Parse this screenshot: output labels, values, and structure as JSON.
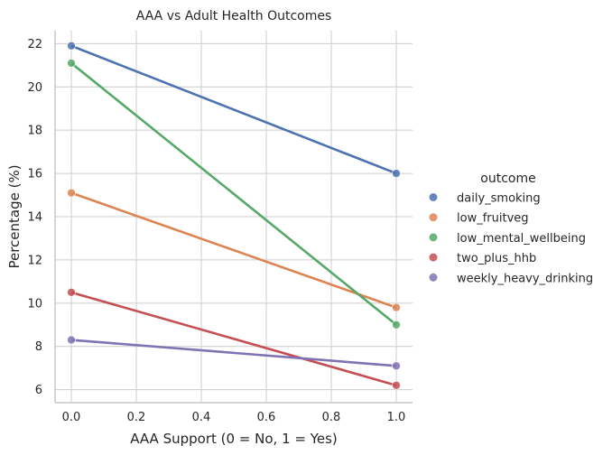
{
  "chart_data": {
    "type": "line",
    "title": "AAA vs Adult Health Outcomes",
    "xlabel": "AAA Support (0 = No, 1 = Yes)",
    "ylabel": "Percentage (%)",
    "xlim": [
      -0.05,
      1.05
    ],
    "ylim": [
      5.4,
      22.6
    ],
    "xticks": [
      0.0,
      0.2,
      0.4,
      0.6,
      0.8,
      1.0
    ],
    "xtick_labels": [
      "0.0",
      "0.2",
      "0.4",
      "0.6",
      "0.8",
      "1.0"
    ],
    "yticks": [
      6,
      8,
      10,
      12,
      14,
      16,
      18,
      20,
      22
    ],
    "ytick_labels": [
      "6",
      "8",
      "10",
      "12",
      "14",
      "16",
      "18",
      "20",
      "22"
    ],
    "grid": true,
    "legend_title": "outcome",
    "legend_position": "right",
    "x": [
      0,
      1
    ],
    "series": [
      {
        "name": "daily_smoking",
        "color": "#4c72b0",
        "values": [
          21.9,
          16.0
        ]
      },
      {
        "name": "low_fruitveg",
        "color": "#dd8452",
        "values": [
          15.1,
          9.8
        ]
      },
      {
        "name": "low_mental_wellbeing",
        "color": "#55a868",
        "values": [
          21.1,
          9.0
        ]
      },
      {
        "name": "two_plus_hhb",
        "color": "#c44e52",
        "values": [
          10.5,
          6.2
        ]
      },
      {
        "name": "weekly_heavy_drinking",
        "color": "#8172b3",
        "values": [
          8.3,
          7.1
        ]
      }
    ]
  }
}
